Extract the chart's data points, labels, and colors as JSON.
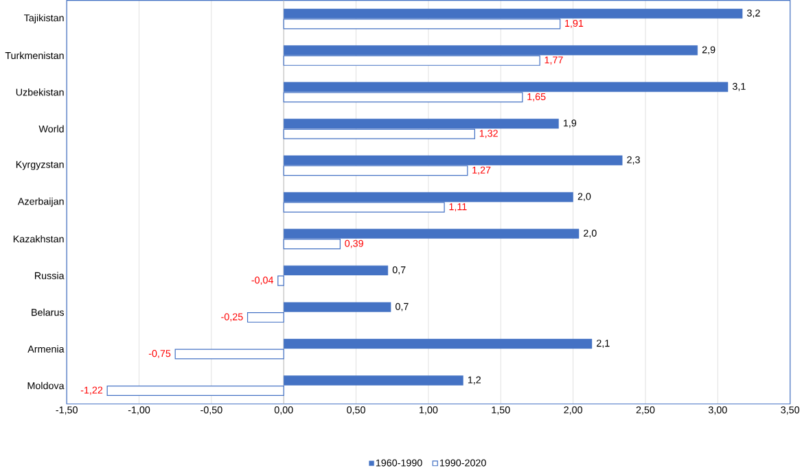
{
  "chart_data": {
    "type": "bar",
    "orientation": "horizontal",
    "categories": [
      "Tajikistan",
      "Turkmenistan",
      "Uzbekistan",
      "World",
      "Kyrgyzstan",
      "Azerbaijan",
      "Kazakhstan",
      "Russia",
      "Belarus",
      "Armenia",
      "Moldova"
    ],
    "series": [
      {
        "name": "1960-1990",
        "color": "#4472c4",
        "values": [
          3.17,
          2.86,
          3.07,
          1.9,
          2.34,
          2.0,
          2.04,
          0.72,
          0.74,
          2.13,
          1.24
        ],
        "value_labels": [
          "3,2",
          "2,9",
          "3,1",
          "1,9",
          "2,3",
          "2,0",
          "2,0",
          "0,7",
          "0,7",
          "2,1",
          "1,2"
        ]
      },
      {
        "name": "1990-2020",
        "color": "#4472c4",
        "values": [
          1.91,
          1.77,
          1.65,
          1.32,
          1.27,
          1.11,
          0.39,
          -0.04,
          -0.25,
          -0.75,
          -1.22
        ],
        "value_labels": [
          "1,91",
          "1,77",
          "1,65",
          "1,32",
          "1,27",
          "1,11",
          "0,39",
          "-0,04",
          "-0,25",
          "-0,75",
          "-1,22"
        ]
      }
    ],
    "xlim": [
      -1.5,
      3.5
    ],
    "xticks": [
      {
        "value": -1.5,
        "label": "-1,50"
      },
      {
        "value": -1.0,
        "label": "-1,00"
      },
      {
        "value": -0.5,
        "label": "-0,50"
      },
      {
        "value": 0,
        "label": "0,00"
      },
      {
        "value": 0.5,
        "label": "0,50"
      },
      {
        "value": 1.0,
        "label": "1,00"
      },
      {
        "value": 1.5,
        "label": "1,50"
      },
      {
        "value": 2.0,
        "label": "2,00"
      },
      {
        "value": 2.5,
        "label": "2,50"
      },
      {
        "value": 3.0,
        "label": "3,00"
      },
      {
        "value": 3.5,
        "label": "3,50"
      }
    ],
    "grid": "x",
    "legend": "bottom"
  }
}
